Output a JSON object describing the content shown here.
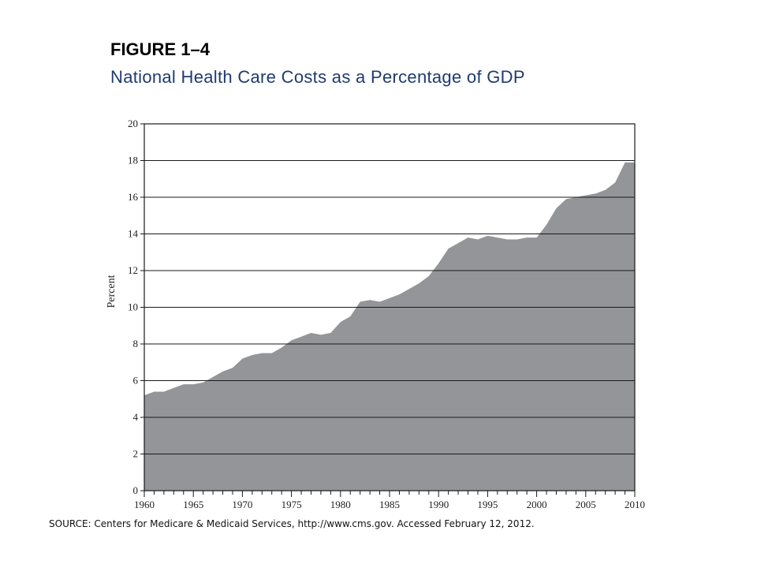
{
  "figure": {
    "label": "FIGURE 1–4",
    "title": "National Health Care Costs as a Percentage of GDP",
    "title_color": "#1f3b6e"
  },
  "source": "SOURCE: Centers for Medicare & Medicaid Services, http://www.cms.gov. Accessed February 12, 2012.",
  "chart_data": {
    "type": "area",
    "title": "National Health Care Costs as a Percentage of GDP",
    "xlabel": "",
    "ylabel": "Percent",
    "xlim": [
      1960,
      2010
    ],
    "ylim": [
      0,
      20
    ],
    "x_ticks": [
      1960,
      1965,
      1970,
      1975,
      1980,
      1985,
      1990,
      1995,
      2000,
      2005,
      2010
    ],
    "y_ticks": [
      0,
      2,
      4,
      6,
      8,
      10,
      12,
      14,
      16,
      18,
      20
    ],
    "grid": "horizontal",
    "fill_color": "#939598",
    "x": [
      1960,
      1961,
      1962,
      1963,
      1964,
      1965,
      1966,
      1967,
      1968,
      1969,
      1970,
      1971,
      1972,
      1973,
      1974,
      1975,
      1976,
      1977,
      1978,
      1979,
      1980,
      1981,
      1982,
      1983,
      1984,
      1985,
      1986,
      1987,
      1988,
      1989,
      1990,
      1991,
      1992,
      1993,
      1994,
      1995,
      1996,
      1997,
      1998,
      1999,
      2000,
      2001,
      2002,
      2003,
      2004,
      2005,
      2006,
      2007,
      2008,
      2009,
      2010
    ],
    "series": [
      {
        "values": [
          5.2,
          5.4,
          5.4,
          5.6,
          5.8,
          5.8,
          5.9,
          6.2,
          6.5,
          6.7,
          7.2,
          7.4,
          7.5,
          7.5,
          7.8,
          8.2,
          8.4,
          8.6,
          8.5,
          8.6,
          9.2,
          9.5,
          10.3,
          10.4,
          10.3,
          10.5,
          10.7,
          11.0,
          11.3,
          11.7,
          12.4,
          13.2,
          13.5,
          13.8,
          13.7,
          13.9,
          13.8,
          13.7,
          13.7,
          13.8,
          13.8,
          14.5,
          15.4,
          15.9,
          16.0,
          16.1,
          16.2,
          16.4,
          16.8,
          17.9,
          17.9
        ]
      }
    ]
  }
}
